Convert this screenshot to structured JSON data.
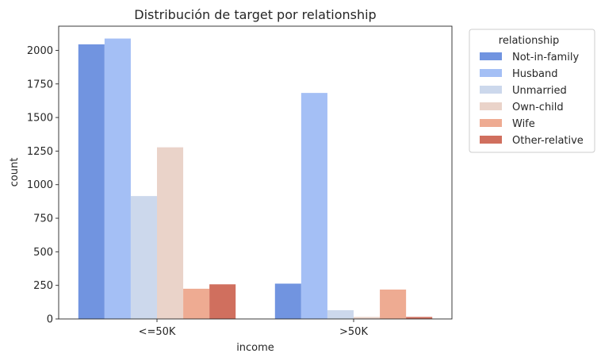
{
  "chart_data": {
    "type": "bar",
    "title": "Distribución de target por relationship",
    "xlabel": "income",
    "ylabel": "count",
    "categories": [
      "<=50K",
      ">50K"
    ],
    "ylim": [
      0,
      2180
    ],
    "yticks": [
      0,
      250,
      500,
      750,
      1000,
      1250,
      1500,
      1750,
      2000
    ],
    "legend_title": "relationship",
    "legend_position": "outside-right-top",
    "grid": false,
    "series": [
      {
        "name": "Not-in-family",
        "color": "#7194e0",
        "values": [
          2045,
          263
        ]
      },
      {
        "name": "Husband",
        "color": "#a4bff5",
        "values": [
          2088,
          1683
        ]
      },
      {
        "name": "Unmarried",
        "color": "#ccd8ec",
        "values": [
          915,
          65
        ]
      },
      {
        "name": "Own-child",
        "color": "#ead3c9",
        "values": [
          1278,
          15
        ]
      },
      {
        "name": "Wife",
        "color": "#eeab92",
        "values": [
          225,
          219
        ]
      },
      {
        "name": "Other-relative",
        "color": "#d06f5e",
        "values": [
          258,
          15
        ]
      }
    ]
  }
}
